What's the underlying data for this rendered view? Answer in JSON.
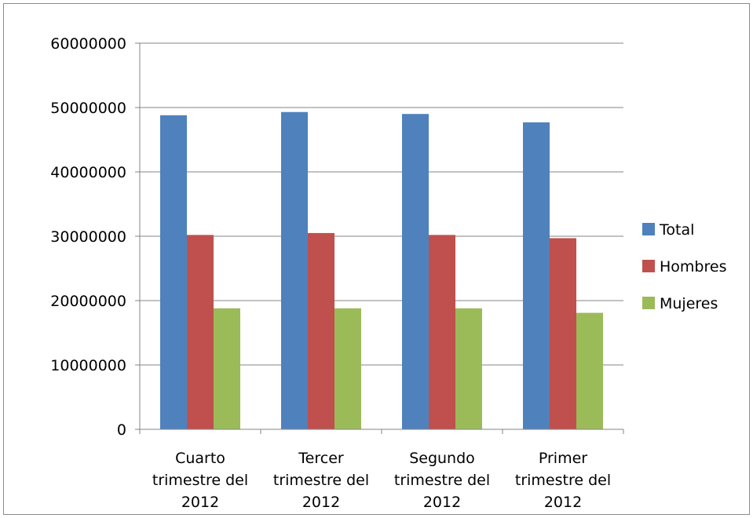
{
  "chart_data": {
    "type": "bar",
    "title": "",
    "xlabel": "",
    "ylabel": "",
    "ylim": [
      0,
      60000000
    ],
    "yticks": [
      0,
      10000000,
      20000000,
      30000000,
      40000000,
      50000000,
      60000000
    ],
    "ytick_labels": [
      "0",
      "10000000",
      "20000000",
      "30000000",
      "40000000",
      "50000000",
      "60000000"
    ],
    "grid": true,
    "legend_position": "right",
    "categories": [
      [
        "Cuarto",
        "trimestre del",
        "2012"
      ],
      [
        "Tercer",
        "trimestre del",
        "2012"
      ],
      [
        "Segundo",
        "trimestre del",
        "2012"
      ],
      [
        "Primer",
        "trimestre del",
        "2012"
      ]
    ],
    "series": [
      {
        "name": "Total",
        "color": "#4f81bd",
        "values": [
          48800000,
          49300000,
          49000000,
          47700000
        ]
      },
      {
        "name": "Hombres",
        "color": "#c0504d",
        "values": [
          30200000,
          30500000,
          30200000,
          29700000
        ]
      },
      {
        "name": "Mujeres",
        "color": "#9bbb59",
        "values": [
          18800000,
          18800000,
          18800000,
          18100000
        ]
      }
    ]
  }
}
